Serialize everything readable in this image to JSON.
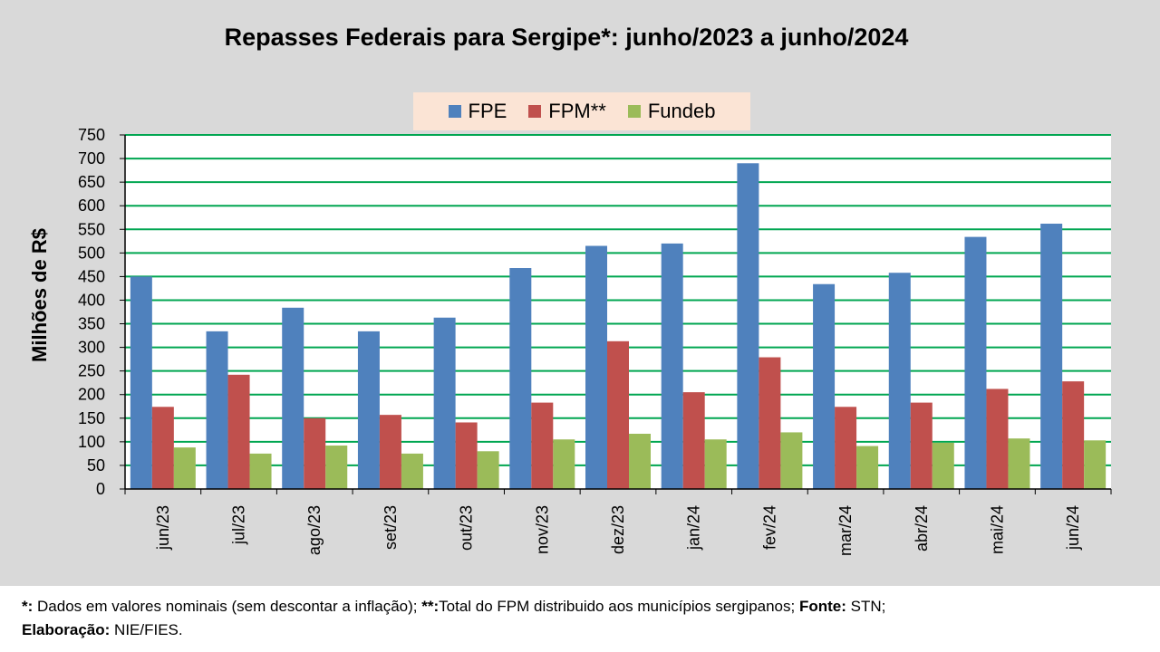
{
  "chart_data": {
    "type": "bar",
    "title": "Repasses Federais para Sergipe*: junho/2023 a junho/2024",
    "ylabel": "Milhões de R$",
    "xlabel": "",
    "ylim": [
      0,
      750
    ],
    "yticks": [
      0,
      50,
      100,
      150,
      200,
      250,
      300,
      350,
      400,
      450,
      500,
      550,
      600,
      650,
      700,
      750
    ],
    "grid": true,
    "legend_position": "top",
    "categories": [
      "jun/23",
      "jul/23",
      "ago/23",
      "set/23",
      "out/23",
      "nov/23",
      "dez/23",
      "jan/24",
      "fev/24",
      "mar/24",
      "abr/24",
      "mai/24",
      "jun/24"
    ],
    "series": [
      {
        "name": "FPE",
        "color": "#4f81bd",
        "values": [
          450,
          334,
          384,
          334,
          363,
          468,
          515,
          520,
          690,
          434,
          458,
          534,
          562
        ]
      },
      {
        "name": "FPM**",
        "color": "#c0504d",
        "values": [
          174,
          242,
          150,
          157,
          141,
          183,
          313,
          205,
          279,
          174,
          183,
          212,
          228
        ]
      },
      {
        "name": "Fundeb",
        "color": "#9bbb59",
        "values": [
          88,
          75,
          92,
          75,
          80,
          105,
          117,
          105,
          120,
          91,
          98,
          107,
          103
        ]
      }
    ]
  },
  "colors": {
    "background": "#d9d9d9",
    "plot_background": "#ffffff",
    "gridline": "#00a651",
    "legend_background": "#fbe4d5"
  },
  "footnote": {
    "line1_mark1": "*:",
    "line1_text1": " Dados em valores nominais (sem descontar a inflação); ",
    "line1_mark2": "**:",
    "line1_text2": "Total  do FPM distribuido aos municípios sergipanos; ",
    "line1_mark3": "Fonte:",
    "line1_text3": " STN;",
    "line2_mark": "Elaboração:",
    "line2_text": " NIE/FIES."
  }
}
